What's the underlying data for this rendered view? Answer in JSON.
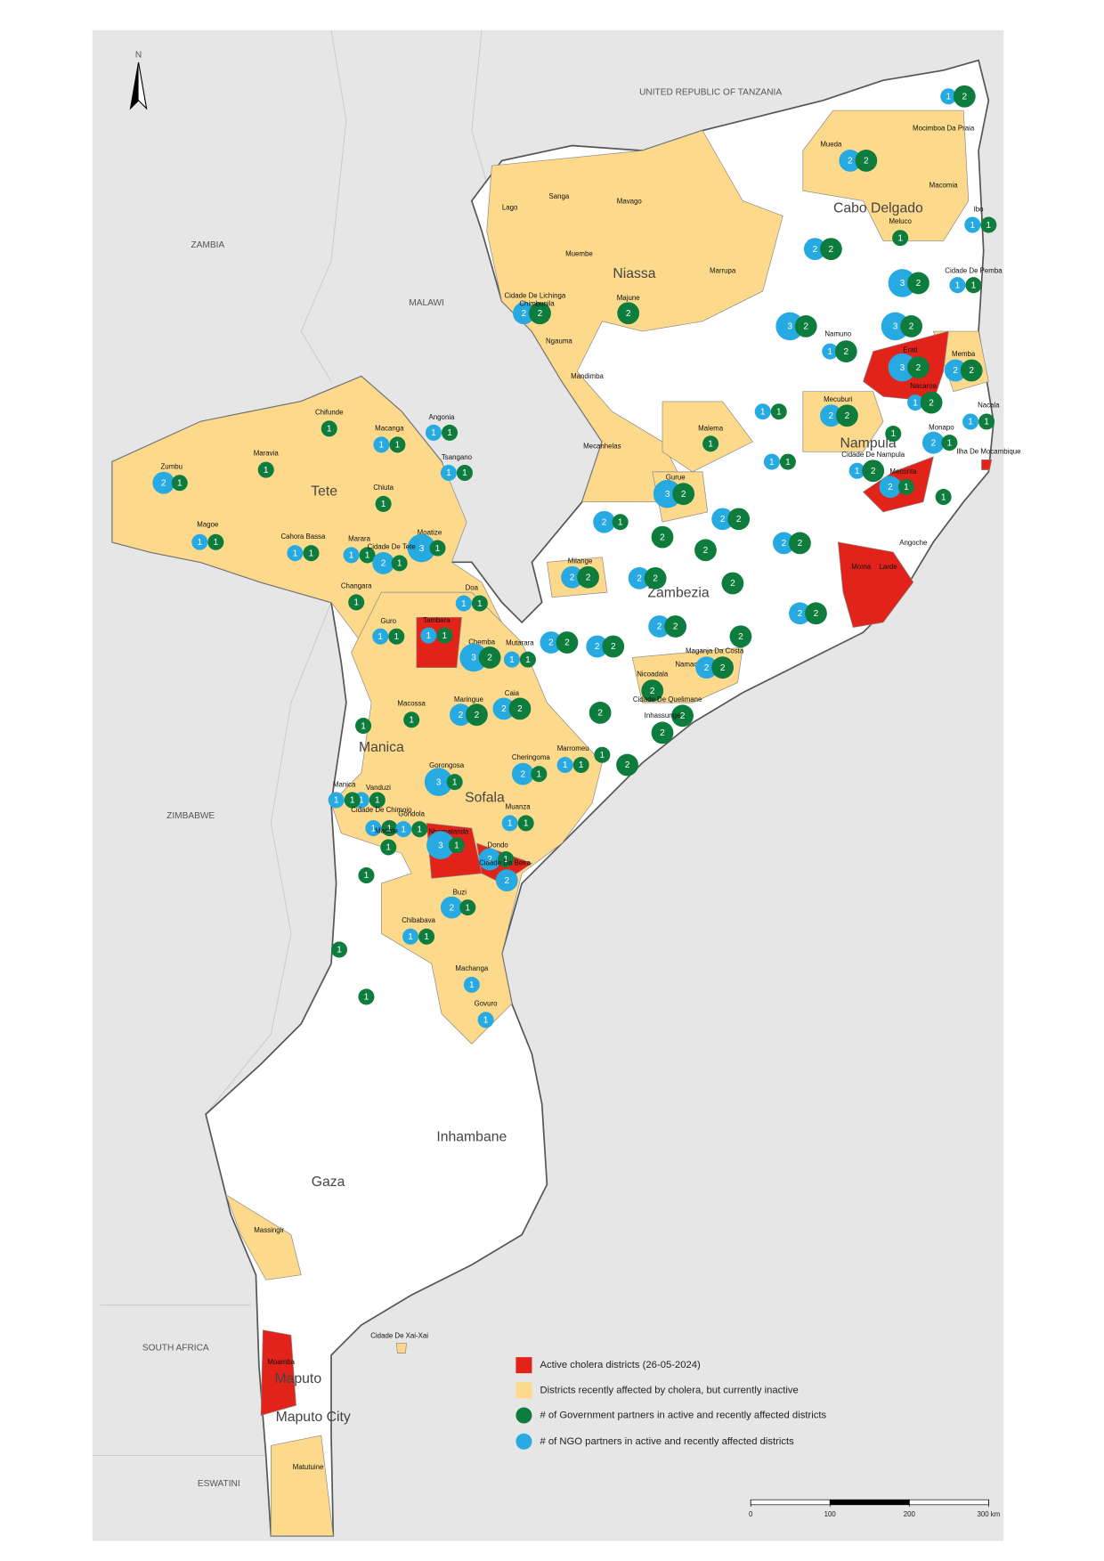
{
  "countries": [
    "UNITED REPUBLIC OF TANZANIA",
    "ZAMBIA",
    "MALAWI",
    "ZIMBABWE",
    "SOUTH AFRICA",
    "ESWATINI"
  ],
  "provinces": [
    "Cabo Delgado",
    "Niassa",
    "Nampula",
    "Tete",
    "Zambezia",
    "Manica",
    "Sofala",
    "Inhambane",
    "Gaza",
    "Maputo",
    "Maputo City"
  ],
  "north": "N",
  "colors": {
    "active": "#e2231a",
    "recent": "#fdd98b",
    "government": "#0d7c3d",
    "ngo": "#27a9e1"
  },
  "districts": [
    {
      "name": "Mueda",
      "status": "recent",
      "ngo": 2,
      "government": 2
    },
    {
      "name": "Mocimboa Da Praia",
      "status": "recent",
      "ngo": 1,
      "government": 2
    },
    {
      "name": "Macomia",
      "status": "recent"
    },
    {
      "name": "Meluco",
      "status": "recent",
      "government": 1
    },
    {
      "name": "Ibo",
      "status": "recent",
      "ngo": 1,
      "government": 1
    },
    {
      "name": "Cidade De Pemba",
      "status": "recent",
      "ngo": 1,
      "government": 1
    },
    {
      "name": "Namuno",
      "status": "recent",
      "ngo": 1,
      "government": 2
    },
    {
      "name": "Erati",
      "status": "active",
      "ngo": 3,
      "government": 2
    },
    {
      "name": "Memba",
      "status": "recent",
      "ngo": 2,
      "government": 2
    },
    {
      "name": "Nacaroa",
      "status": "active",
      "ngo": 1,
      "government": 2
    },
    {
      "name": "Nacala",
      "status": "recent",
      "ngo": 1,
      "government": 1
    },
    {
      "name": "Mecuburi",
      "status": "recent",
      "ngo": 2,
      "government": 2
    },
    {
      "name": "Malema",
      "status": "recent",
      "government": 1
    },
    {
      "name": "Cidade De Nampula",
      "status": "recent",
      "ngo": 1,
      "government": 2
    },
    {
      "name": "Monapo",
      "status": "recent",
      "ngo": 2,
      "government": 1
    },
    {
      "name": "Ilha De Mocambique",
      "status": "active"
    },
    {
      "name": "Meconta",
      "status": "active",
      "ngo": 2,
      "government": 1
    },
    {
      "name": "Angoche",
      "status": "recent"
    },
    {
      "name": "Moma",
      "status": "active"
    },
    {
      "name": "Larde",
      "status": "active"
    },
    {
      "name": "Gurue",
      "status": "recent",
      "ngo": 3,
      "government": 2
    },
    {
      "name": "Milange",
      "status": "recent",
      "ngo": 2,
      "government": 2
    },
    {
      "name": "Namacurra",
      "status": "recent",
      "ngo": 2,
      "government": 2
    },
    {
      "name": "Maganja Da Costa",
      "status": "recent",
      "government": 2
    },
    {
      "name": "Nicoadala",
      "status": "recent",
      "government": 2
    },
    {
      "name": "Cidade De Quelimane",
      "status": "recent",
      "government": 2
    },
    {
      "name": "Inhassunge",
      "status": "recent",
      "government": 2
    },
    {
      "name": "Lago",
      "status": "recent"
    },
    {
      "name": "Sanga",
      "status": "recent"
    },
    {
      "name": "Mavago",
      "status": "recent"
    },
    {
      "name": "Muembe",
      "status": "recent"
    },
    {
      "name": "Marrupa",
      "status": "recent"
    },
    {
      "name": "Cidade De Lichinga",
      "status": "recent",
      "ngo": 2,
      "government": 2
    },
    {
      "name": "Chimbunila",
      "status": "recent"
    },
    {
      "name": "Majune",
      "status": "recent",
      "government": 2
    },
    {
      "name": "Ngauma",
      "status": "recent"
    },
    {
      "name": "Mandimba",
      "status": "recent"
    },
    {
      "name": "Mecanhelas",
      "status": "recent"
    },
    {
      "name": "Chifunde",
      "status": "recent",
      "government": 1
    },
    {
      "name": "Angonia",
      "status": "recent",
      "ngo": 1,
      "government": 1
    },
    {
      "name": "Macanga",
      "status": "recent",
      "ngo": 1,
      "government": 1
    },
    {
      "name": "Tsangano",
      "status": "recent",
      "ngo": 1,
      "government": 1
    },
    {
      "name": "Maravia",
      "status": "recent",
      "government": 1
    },
    {
      "name": "Zumbu",
      "status": "recent",
      "ngo": 2,
      "government": 1
    },
    {
      "name": "Chiuta",
      "status": "recent",
      "government": 1
    },
    {
      "name": "Magoe",
      "status": "recent",
      "ngo": 1,
      "government": 1
    },
    {
      "name": "Cahora Bassa",
      "status": "recent",
      "ngo": 1,
      "government": 1
    },
    {
      "name": "Marara",
      "status": "recent",
      "ngo": 1,
      "government": 1
    },
    {
      "name": "Moatize",
      "status": "recent",
      "ngo": 3,
      "government": 1
    },
    {
      "name": "Cidade De Tete",
      "status": "recent",
      "ngo": 2,
      "government": 1
    },
    {
      "name": "Changara",
      "status": "recent",
      "government": 1
    },
    {
      "name": "Doa",
      "status": "recent",
      "ngo": 1,
      "government": 1
    },
    {
      "name": "Guro",
      "status": "recent",
      "ngo": 1,
      "government": 1
    },
    {
      "name": "Tambara",
      "status": "active",
      "ngo": 1,
      "government": 1
    },
    {
      "name": "Chemba",
      "status": "recent",
      "ngo": 3,
      "government": 2
    },
    {
      "name": "Mutarara",
      "status": "recent",
      "ngo": 1,
      "government": 1
    },
    {
      "name": "Macossa",
      "status": "recent",
      "government": 1
    },
    {
      "name": "Maringue",
      "status": "recent",
      "ngo": 2,
      "government": 2
    },
    {
      "name": "Caia",
      "status": "recent",
      "ngo": 2,
      "government": 2
    },
    {
      "name": "Gorongosa",
      "status": "recent",
      "ngo": 3,
      "government": 1
    },
    {
      "name": "Cheringoma",
      "status": "recent",
      "ngo": 2,
      "government": 1
    },
    {
      "name": "Marromeu",
      "status": "recent",
      "ngo": 1,
      "government": 1
    },
    {
      "name": "Vanduzi",
      "status": "recent",
      "ngo": 1,
      "government": 1
    },
    {
      "name": "Manica",
      "status": "recent",
      "ngo": 1,
      "government": 1
    },
    {
      "name": "Cidade De Chimoio",
      "status": "recent",
      "ngo": 1,
      "government": 1
    },
    {
      "name": "Gondola",
      "status": "recent",
      "ngo": 1,
      "government": 1
    },
    {
      "name": "Macate",
      "status": "recent",
      "government": 1
    },
    {
      "name": "Muanza",
      "status": "recent",
      "ngo": 1,
      "government": 1
    },
    {
      "name": "Nhamatanda",
      "status": "active",
      "ngo": 3,
      "government": 1
    },
    {
      "name": "Dondo",
      "status": "active",
      "ngo": 2,
      "government": 1
    },
    {
      "name": "Cidade Da Beira",
      "status": "active",
      "ngo": 2
    },
    {
      "name": "Buzi",
      "status": "recent",
      "ngo": 2,
      "government": 1
    },
    {
      "name": "Chibabava",
      "status": "recent",
      "ngo": 1,
      "government": 1
    },
    {
      "name": "Machanga",
      "status": "recent",
      "ngo": 1
    },
    {
      "name": "Govuro",
      "status": "recent",
      "ngo": 1
    },
    {
      "name": "Massingir",
      "status": "recent"
    },
    {
      "name": "Cidade De Xai-Xai",
      "status": "recent"
    },
    {
      "name": "Moamba",
      "status": "active"
    },
    {
      "name": "Matutuine",
      "status": "recent"
    }
  ],
  "unnamed_markers": [
    {
      "ngo": 2,
      "government": 2
    },
    {
      "ngo": 3,
      "government": 2
    },
    {
      "ngo": 3,
      "government": 2
    },
    {
      "ngo": 3,
      "government": 2
    },
    {
      "ngo": 1,
      "government": 1
    },
    {
      "ngo": 1,
      "government": 1
    },
    {
      "government": 1
    },
    {
      "government": 1
    },
    {
      "ngo": 2,
      "government": 1
    },
    {
      "government": 2
    },
    {
      "ngo": 2,
      "government": 2
    },
    {
      "government": 2
    },
    {
      "ngo": 2,
      "government": 2
    },
    {
      "ngo": 2,
      "government": 2
    },
    {
      "government": 2
    },
    {
      "ngo": 2,
      "government": 2
    },
    {
      "ngo": 2,
      "government": 2
    },
    {
      "ngo": 2,
      "government": 2
    },
    {
      "ngo": 2,
      "government": 2
    },
    {
      "government": 2
    },
    {
      "government": 2
    },
    {
      "government": 1
    },
    {
      "government": 1
    },
    {
      "government": 1
    },
    {
      "government": 1
    },
    {
      "government": 1
    }
  ],
  "legend": {
    "active": "Active cholera districts (26-05-2024)",
    "recent": "Districts recently affected by cholera, but currently inactive",
    "government": "# of Government partners in active and recently affected districts",
    "ngo": "# of NGO partners in active and recently affected districts"
  },
  "scale": {
    "ticks": [
      0,
      100,
      200,
      {
        "value": 300,
        "label": "300 km"
      }
    ]
  }
}
